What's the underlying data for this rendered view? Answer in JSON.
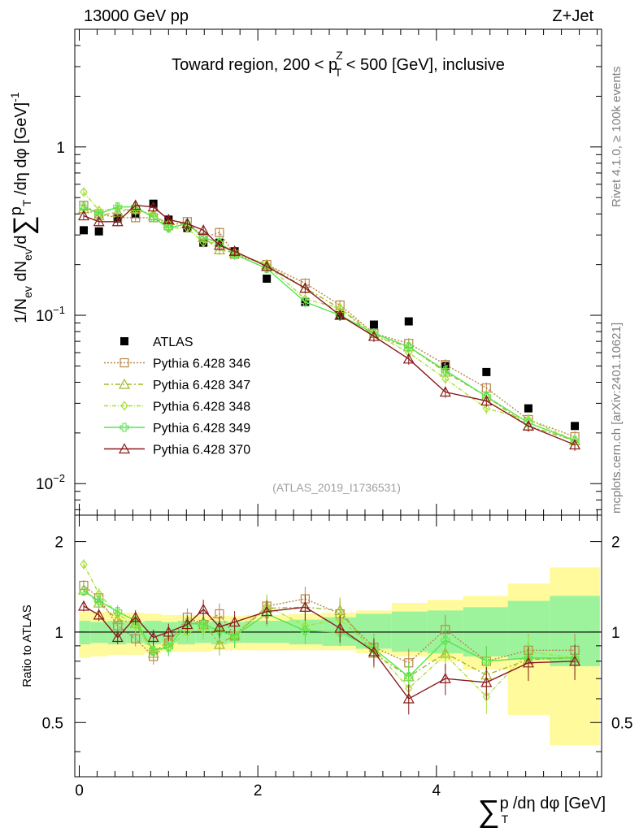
{
  "header": {
    "energy_label": "13000 GeV pp",
    "process_label": "Z+Jet"
  },
  "side_labels": {
    "rivet": "Rivet 4.1.0, ≥ 100k events",
    "mcplots": "mcplots.cern.ch [arXiv:2401.10621]"
  },
  "chart_data": [
    {
      "type": "scatter",
      "panel": "main",
      "title_parts": [
        "Toward region, 200 < p",
        "Z",
        "T",
        " < 500 [GeV], inclusive"
      ],
      "ylabel_parts": [
        "1/N",
        "ev",
        " dN",
        "ev",
        "/d",
        "∑",
        "p",
        "T",
        " /dη dφ  [GeV]",
        "-1"
      ],
      "y_scale": "log",
      "ylim": [
        0.0065,
        5.0
      ],
      "xlim": [
        -0.05,
        5.85
      ],
      "y_tick_labels": [
        {
          "value": 1,
          "mant": "1",
          "exp": ""
        },
        {
          "value": 0.1,
          "mant": "10",
          "exp": "−1"
        },
        {
          "value": 0.01,
          "mant": "10",
          "exp": "−2"
        }
      ],
      "watermark": "(ATLAS_2019_I1736531)",
      "x": [
        0.05,
        0.22,
        0.43,
        0.63,
        0.83,
        1.0,
        1.21,
        1.39,
        1.57,
        1.74,
        2.1,
        2.53,
        2.92,
        3.3,
        3.69,
        4.1,
        4.56,
        5.03,
        5.55
      ],
      "series": [
        {
          "name": "ATLAS",
          "kind": "data",
          "color": "#000000",
          "values": [
            0.32,
            0.315,
            0.375,
            0.4,
            0.46,
            0.37,
            0.33,
            0.27,
            0.27,
            0.24,
            0.165,
            0.12,
            0.1,
            0.088,
            0.092,
            0.05,
            0.046,
            0.028,
            0.022
          ],
          "errors": [
            0.005,
            0.005,
            0.006,
            0.006,
            0.008,
            0.007,
            0.006,
            0.005,
            0.005,
            0.005,
            0.004,
            0.003,
            0.003,
            0.003,
            0.003,
            0.002,
            0.002,
            0.001,
            0.001
          ]
        },
        {
          "name": "Pythia 6.428 346",
          "kind": "mc",
          "color": "#b8864b",
          "dash": "2,2",
          "marker": "square",
          "values": [
            0.45,
            0.4,
            0.38,
            0.38,
            0.38,
            0.34,
            0.36,
            0.29,
            0.31,
            0.23,
            0.2,
            0.155,
            0.115,
            0.078,
            0.068,
            0.051,
            0.037,
            0.024,
            0.019
          ]
        },
        {
          "name": "Pythia 6.428 347",
          "kind": "mc",
          "color": "#a3b52a",
          "dash": "6,3,2,3",
          "marker": "triangle",
          "values": [
            0.43,
            0.39,
            0.41,
            0.43,
            0.39,
            0.35,
            0.35,
            0.29,
            0.245,
            0.235,
            0.2,
            0.145,
            0.11,
            0.075,
            0.065,
            0.046,
            0.033,
            0.022,
            0.018
          ]
        },
        {
          "name": "Pythia 6.428 348",
          "kind": "mc",
          "color": "#a6e035",
          "dash": "5,2,1,2",
          "marker": "diamond",
          "values": [
            0.54,
            0.42,
            0.43,
            0.42,
            0.4,
            0.33,
            0.33,
            0.27,
            0.27,
            0.235,
            0.2,
            0.125,
            0.11,
            0.078,
            0.06,
            0.042,
            0.028,
            0.024,
            0.018
          ]
        },
        {
          "name": "Pythia 6.428 349",
          "kind": "mc",
          "color": "#56e64b",
          "dash": "",
          "marker": "cross",
          "values": [
            0.44,
            0.4,
            0.44,
            0.44,
            0.38,
            0.33,
            0.35,
            0.29,
            0.27,
            0.23,
            0.19,
            0.12,
            0.1,
            0.078,
            0.065,
            0.047,
            0.033,
            0.023,
            0.018
          ]
        },
        {
          "name": "Pythia 6.428 370",
          "kind": "mc",
          "color": "#8a1a1a",
          "dash": "",
          "marker": "triangle",
          "values": [
            0.39,
            0.36,
            0.36,
            0.45,
            0.44,
            0.37,
            0.35,
            0.32,
            0.26,
            0.24,
            0.195,
            0.145,
            0.1,
            0.075,
            0.055,
            0.035,
            0.031,
            0.022,
            0.017
          ]
        }
      ]
    },
    {
      "type": "line",
      "panel": "ratio",
      "ylabel": "Ratio to ATLAS",
      "ylim": [
        0.33,
        2.45
      ],
      "xlim": [
        -0.05,
        5.85
      ],
      "y_ticks": [
        0.5,
        1,
        2
      ],
      "y_tick_labels": [
        "0.5",
        "1",
        "2"
      ],
      "x_ticks": [
        0,
        2,
        4
      ],
      "x_tick_labels": [
        "0",
        "2",
        "4"
      ],
      "xlabel_parts": [
        "∑",
        "p",
        "T",
        " /dη dφ [GeV]"
      ],
      "x": [
        0.05,
        0.22,
        0.43,
        0.63,
        0.83,
        1.0,
        1.21,
        1.39,
        1.57,
        1.74,
        2.1,
        2.53,
        2.92,
        3.3,
        3.69,
        4.1,
        4.56,
        5.03,
        5.55
      ],
      "bin_edges": [
        0.0,
        0.13,
        0.32,
        0.53,
        0.73,
        0.92,
        1.1,
        1.3,
        1.48,
        1.66,
        1.85,
        2.35,
        2.72,
        3.1,
        3.5,
        3.9,
        4.3,
        4.8,
        5.27,
        5.83
      ],
      "band_stat_low": [
        0.91,
        0.92,
        0.91,
        0.92,
        0.91,
        0.92,
        0.91,
        0.92,
        0.91,
        0.92,
        0.92,
        0.91,
        0.9,
        0.88,
        0.86,
        0.85,
        0.83,
        0.81,
        0.77
      ],
      "band_stat_high": [
        1.09,
        1.08,
        1.09,
        1.08,
        1.09,
        1.08,
        1.09,
        1.08,
        1.09,
        1.08,
        1.09,
        1.1,
        1.12,
        1.15,
        1.17,
        1.18,
        1.21,
        1.27,
        1.32
      ],
      "band_tot_low": [
        0.82,
        0.83,
        0.84,
        0.84,
        0.85,
        0.86,
        0.86,
        0.86,
        0.87,
        0.87,
        0.87,
        0.87,
        0.87,
        0.85,
        0.83,
        0.8,
        0.75,
        0.53,
        0.42
      ],
      "band_tot_high": [
        1.17,
        1.17,
        1.16,
        1.16,
        1.15,
        1.14,
        1.14,
        1.14,
        1.13,
        1.13,
        1.14,
        1.15,
        1.16,
        1.18,
        1.25,
        1.28,
        1.32,
        1.45,
        1.64
      ],
      "series": [
        {
          "name": "Pythia 6.428 346",
          "color": "#b8864b",
          "dash": "2,2",
          "marker": "square",
          "values": [
            1.43,
            1.3,
            1.05,
            0.95,
            0.83,
            0.92,
            1.12,
            1.06,
            1.15,
            0.97,
            1.22,
            1.29,
            1.15,
            0.89,
            0.79,
            1.02,
            0.8,
            0.87,
            0.87
          ]
        },
        {
          "name": "Pythia 6.428 347",
          "color": "#a3b52a",
          "dash": "6,3,2,3",
          "marker": "triangle",
          "values": [
            1.38,
            1.25,
            1.1,
            1.07,
            0.85,
            0.94,
            1.06,
            1.08,
            0.91,
            0.98,
            1.2,
            1.21,
            1.18,
            0.85,
            0.71,
            0.85,
            0.72,
            0.81,
            0.82
          ]
        },
        {
          "name": "Pythia 6.428 348",
          "color": "#a6e035",
          "dash": "5,2,1,2",
          "marker": "diamond",
          "values": [
            1.68,
            1.34,
            1.15,
            1.05,
            0.87,
            0.89,
            1.0,
            1.02,
            1.02,
            0.98,
            1.22,
            1.05,
            1.1,
            0.88,
            0.65,
            0.84,
            0.61,
            0.86,
            0.82
          ]
        },
        {
          "name": "Pythia 6.428 349",
          "color": "#56e64b",
          "dash": "",
          "marker": "cross",
          "values": [
            1.37,
            1.27,
            1.17,
            1.09,
            0.87,
            0.89,
            1.07,
            1.06,
            1.01,
            0.97,
            1.15,
            1.01,
            1.0,
            0.88,
            0.71,
            0.94,
            0.8,
            0.82,
            0.82
          ]
        },
        {
          "name": "Pythia 6.428 370",
          "color": "#8a1a1a",
          "dash": "",
          "marker": "triangle",
          "values": [
            1.22,
            1.14,
            0.96,
            1.12,
            0.96,
            1.0,
            1.06,
            1.19,
            1.04,
            1.08,
            1.17,
            1.21,
            1.03,
            0.86,
            0.6,
            0.7,
            0.68,
            0.79,
            0.8
          ]
        }
      ]
    }
  ]
}
